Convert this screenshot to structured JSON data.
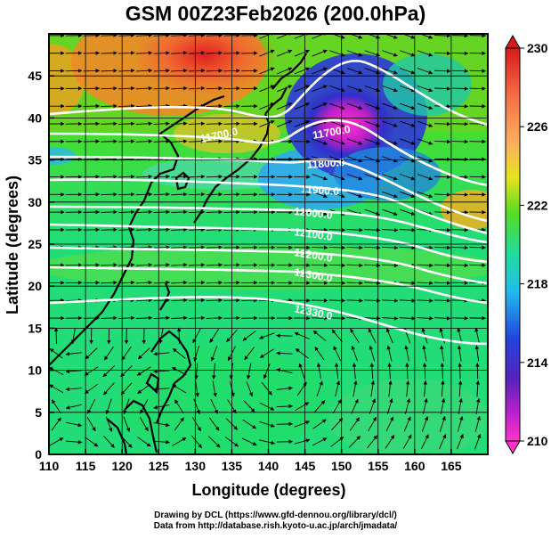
{
  "title": "GSM 00Z23Feb2026 (200.0hPa)",
  "x_axis": {
    "label": "Longitude (degrees)",
    "ticks": [
      "110",
      "115",
      "120",
      "125",
      "130",
      "135",
      "140",
      "145",
      "150",
      "155",
      "160",
      "165"
    ]
  },
  "y_axis": {
    "label": "Latitude  (degrees)",
    "ticks": [
      "0",
      "5",
      "10",
      "15",
      "20",
      "25",
      "30",
      "35",
      "40",
      "45"
    ]
  },
  "colorbar": {
    "labels": [
      "230",
      "226",
      "222",
      "218",
      "214",
      "210"
    ],
    "colors": [
      "#d7191c",
      "#fdae61",
      "#ffe000",
      "#66dd22",
      "#22dd88",
      "#22ccee",
      "#2255dd",
      "#2222aa",
      "#cc22cc",
      "#ff33cc"
    ]
  },
  "contours": [
    {
      "label": "11700.0"
    },
    {
      "label": "11700.0"
    },
    {
      "label": "11800.0"
    },
    {
      "label": "11900.0"
    },
    {
      "label": "12000.0"
    },
    {
      "label": "12100.0"
    },
    {
      "label": "12200.0"
    },
    {
      "label": "12300.0"
    },
    {
      "label": "12330.0"
    }
  ],
  "credits": {
    "line1": "Drawing by DCL (https://www.gfd-dennou.org/library/dcl/)",
    "line2": "Data from http://database.rish.kyoto-u.ac.jp/arch/jmadata/"
  }
}
